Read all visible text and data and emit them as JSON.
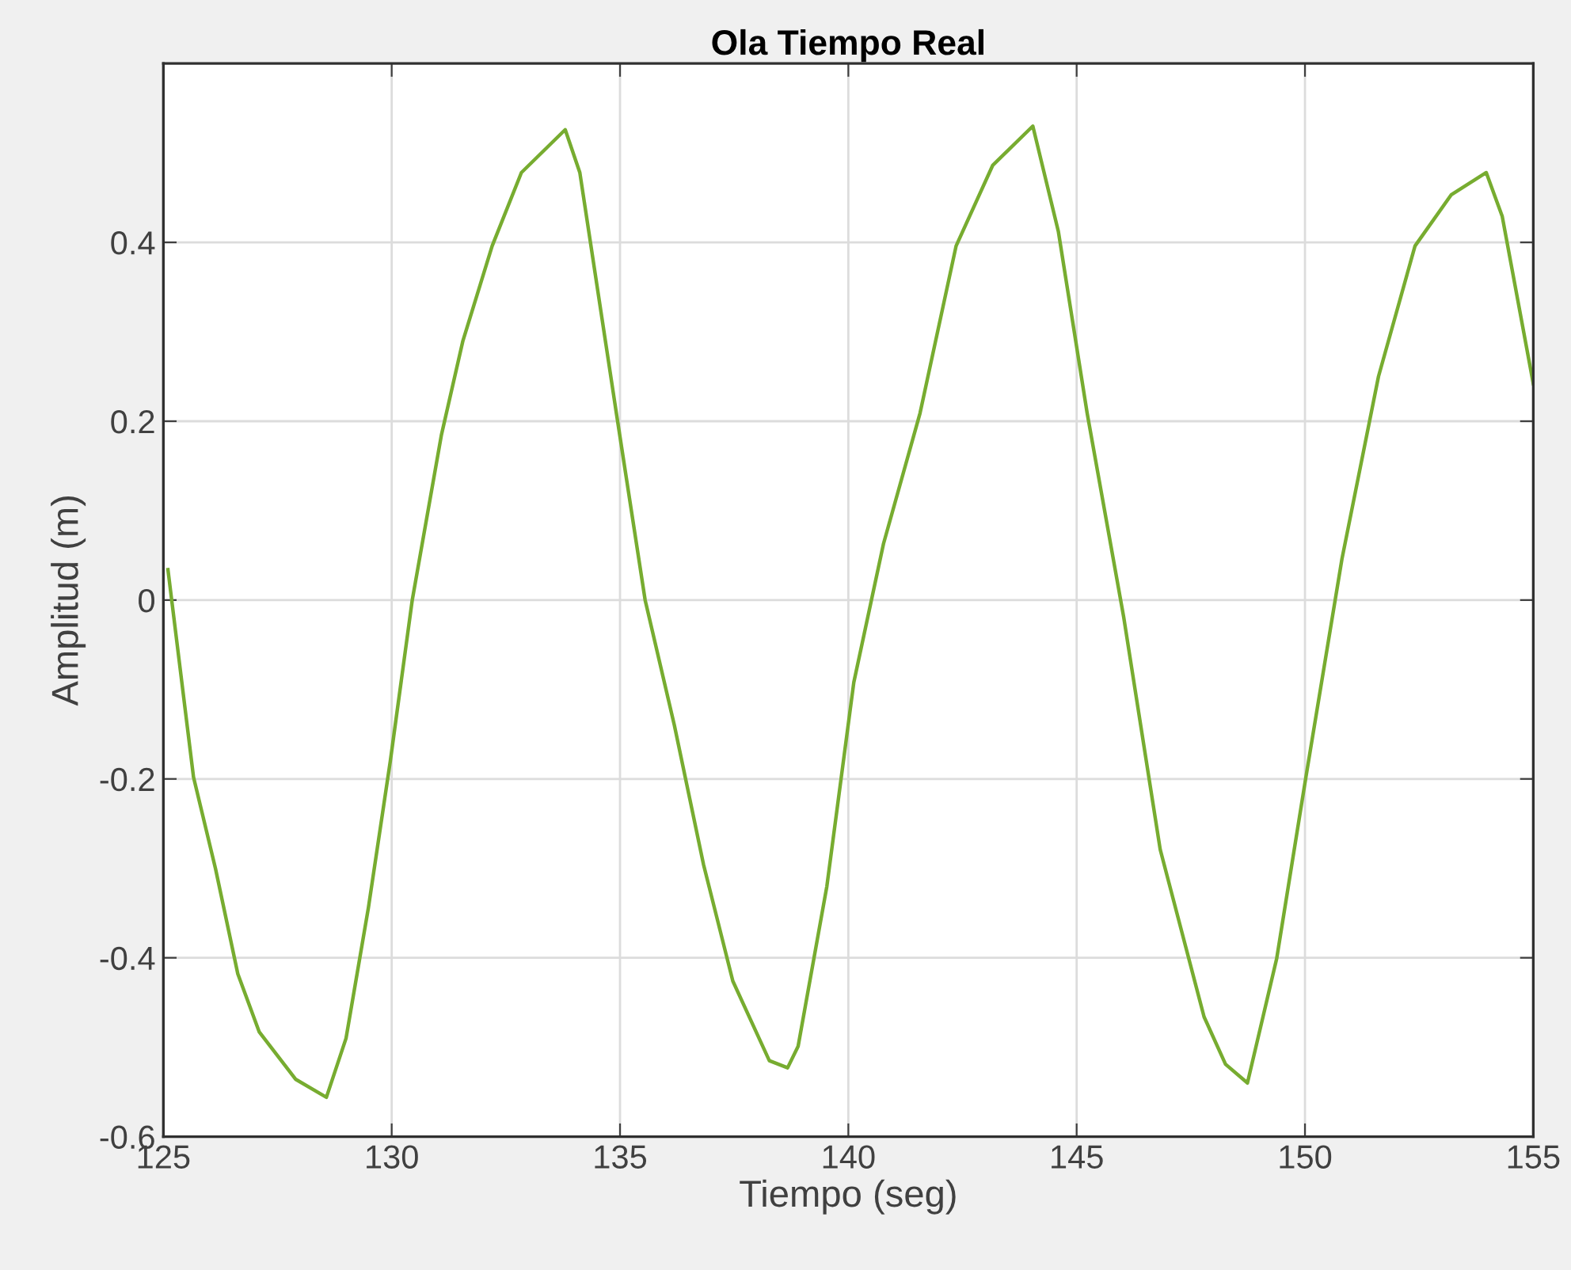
{
  "chart_data": {
    "type": "line",
    "title": "Ola Tiempo Real",
    "xlabel": "Tiempo (seg)",
    "ylabel": "Amplitud (m)",
    "x": [
      125.1,
      125.66,
      126.14,
      126.63,
      127.1,
      127.9,
      128.57,
      129.0,
      129.49,
      129.97,
      130.45,
      131.09,
      131.56,
      132.2,
      132.84,
      133.8,
      134.12,
      134.92,
      135.55,
      136.19,
      136.83,
      137.47,
      138.27,
      138.67,
      138.9,
      139.53,
      140.12,
      140.77,
      141.57,
      142.36,
      143.16,
      144.04,
      144.6,
      145.23,
      146.03,
      146.83,
      147.79,
      148.26,
      148.74,
      149.38,
      150.02,
      150.81,
      151.61,
      152.41,
      153.2,
      153.97,
      154.32,
      155.0
    ],
    "series": [
      {
        "color": "#77ac30",
        "values": [
          0.034,
          -0.198,
          -0.3,
          -0.418,
          -0.483,
          -0.536,
          -0.556,
          -0.49,
          -0.344,
          -0.18,
          0.0,
          0.185,
          0.29,
          0.396,
          0.478,
          0.526,
          0.478,
          0.209,
          0.0,
          -0.14,
          -0.296,
          -0.426,
          -0.515,
          -0.523,
          -0.499,
          -0.32,
          -0.092,
          0.063,
          0.209,
          0.396,
          0.486,
          0.53,
          0.412,
          0.209,
          -0.019,
          -0.279,
          -0.466,
          -0.519,
          -0.54,
          -0.401,
          -0.198,
          0.046,
          0.25,
          0.396,
          0.453,
          0.478,
          0.429,
          0.242
        ]
      }
    ],
    "xlim": [
      125,
      155
    ],
    "xticks": [
      125,
      130,
      135,
      140,
      145,
      150,
      155
    ],
    "ylim": [
      -0.6,
      0.6
    ],
    "yticks": [
      -0.6,
      -0.4,
      -0.2,
      0,
      0.2,
      0.4
    ],
    "grid": true,
    "legend": false,
    "marker": "none",
    "line_style": "solid"
  }
}
